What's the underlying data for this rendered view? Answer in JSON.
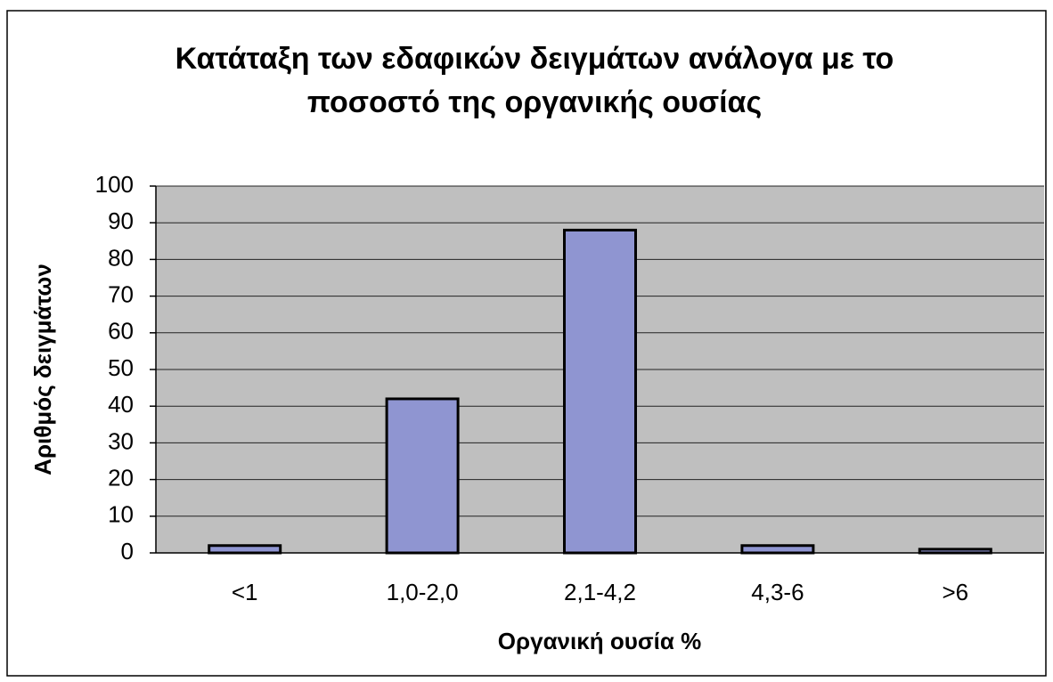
{
  "chart_data": {
    "type": "bar",
    "title": [
      "Κατάταξη των εδαφικών δειγμάτων ανάλογα με το",
      "ποσοστό της οργανικής ουσίας"
    ],
    "x_label": "Οργανική ουσία %",
    "y_label": "Αριθμός δειγμάτων",
    "categories": [
      "<1",
      "1,0-2,0",
      "2,1-4,2",
      "4,3-6",
      ">6"
    ],
    "values": [
      2,
      42,
      88,
      2,
      1
    ],
    "color": "#8f95d1",
    "ylim": [
      0,
      100
    ],
    "yticks": [
      0,
      10,
      20,
      30,
      40,
      50,
      60,
      70,
      80,
      90,
      100
    ],
    "grid": true
  }
}
